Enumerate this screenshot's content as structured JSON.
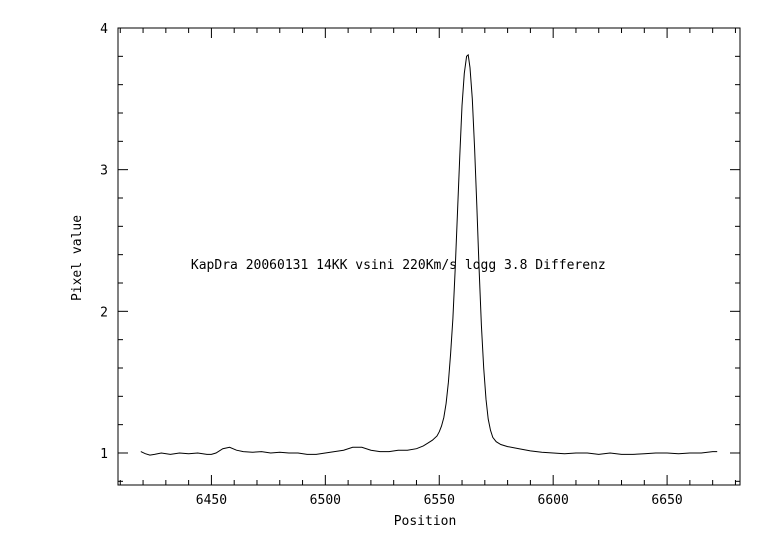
{
  "chart_data": {
    "type": "line",
    "title": "",
    "xlabel": "Position",
    "ylabel": "Pixel value",
    "xlim": [
      6409,
      6682
    ],
    "ylim": [
      0.774,
      4.0
    ],
    "grid": false,
    "x_ticks": [
      6450,
      6500,
      6550,
      6600,
      6650
    ],
    "y_ticks": [
      1,
      2,
      3,
      4
    ],
    "x_minor_step": 10,
    "y_minor_step": 0.2,
    "line_color": "#000000",
    "annotation": {
      "text": "KapDra 20060131 14KK vsini 220Km/s logg 3.8 Differenz",
      "x": 6441,
      "y": 2.3
    },
    "series": [
      {
        "x": [
          6419,
          6421,
          6423,
          6425,
          6428,
          6432,
          6436,
          6440,
          6444,
          6448,
          6450,
          6452,
          6455,
          6458,
          6461,
          6464,
          6468,
          6472,
          6476,
          6480,
          6484,
          6488,
          6492,
          6496,
          6500,
          6504,
          6508,
          6512,
          6516,
          6520,
          6524,
          6528,
          6532,
          6536,
          6540,
          6543,
          6545,
          6547,
          6549,
          6550,
          6551,
          6552,
          6553,
          6554,
          6555,
          6556,
          6557,
          6558,
          6559,
          6560,
          6561,
          6562,
          6562.7,
          6563.5,
          6564.5,
          6565.5,
          6566.5,
          6567.5,
          6568.5,
          6569.5,
          6570.5,
          6571.5,
          6572.5,
          6573.5,
          6575,
          6577,
          6580,
          6585,
          6590,
          6595,
          6600,
          6605,
          6610,
          6615,
          6620,
          6625,
          6630,
          6635,
          6640,
          6645,
          6650,
          6655,
          6660,
          6665,
          6670,
          6672
        ],
        "y": [
          1.01,
          0.995,
          0.985,
          0.99,
          1.0,
          0.99,
          1.0,
          0.995,
          1.0,
          0.99,
          0.99,
          1.0,
          1.03,
          1.04,
          1.02,
          1.01,
          1.005,
          1.01,
          1.0,
          1.005,
          1.0,
          1.0,
          0.99,
          0.99,
          1.0,
          1.01,
          1.02,
          1.04,
          1.04,
          1.02,
          1.01,
          1.01,
          1.02,
          1.02,
          1.03,
          1.05,
          1.07,
          1.09,
          1.12,
          1.15,
          1.19,
          1.25,
          1.35,
          1.5,
          1.7,
          1.95,
          2.3,
          2.7,
          3.1,
          3.45,
          3.68,
          3.8,
          3.81,
          3.72,
          3.5,
          3.15,
          2.75,
          2.3,
          1.9,
          1.6,
          1.38,
          1.24,
          1.16,
          1.11,
          1.08,
          1.06,
          1.045,
          1.03,
          1.015,
          1.005,
          1.0,
          0.995,
          1.0,
          1.0,
          0.99,
          1.0,
          0.99,
          0.99,
          0.995,
          1.0,
          1.0,
          0.995,
          1.0,
          1.0,
          1.01,
          1.01
        ]
      }
    ]
  }
}
